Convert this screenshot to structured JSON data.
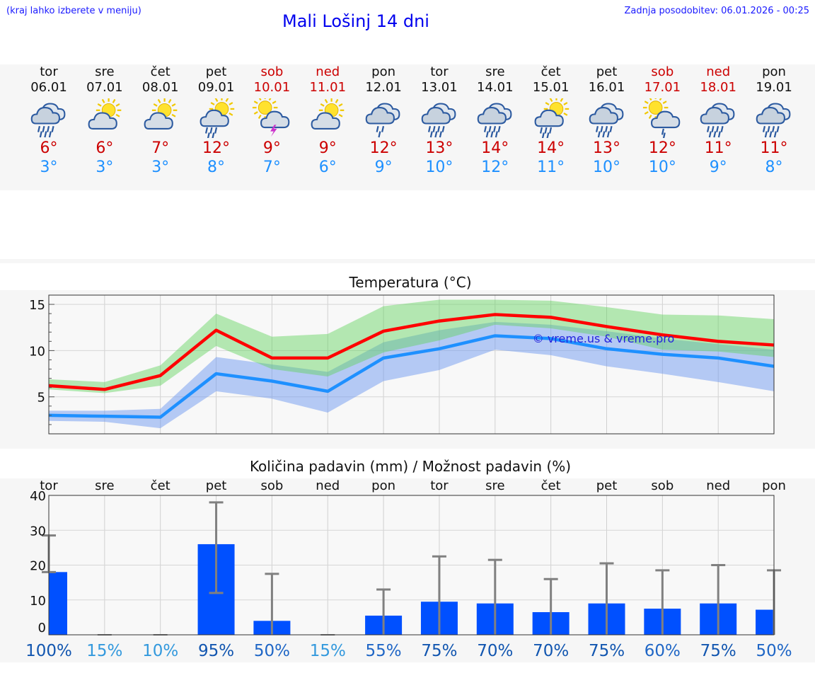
{
  "header": {
    "menu_hint": "(kraj lahko izberete v meniju)",
    "title": "Mali Lošinj 14 dni",
    "updated": "Zadnja posodobitev: 06.01.2026 - 00:25"
  },
  "colors": {
    "max": "#ff0000",
    "min": "#1e90ff",
    "bar": "#0050ff",
    "weekend": "#cc0000"
  },
  "days": [
    {
      "name": "tor",
      "date": "06.01",
      "max": "6°",
      "min": "3°",
      "icon": "rain-cloud-icon",
      "weekend": false
    },
    {
      "name": "sre",
      "date": "07.01",
      "max": "6°",
      "min": "3°",
      "icon": "partly-sunny-icon",
      "weekend": false
    },
    {
      "name": "čet",
      "date": "08.01",
      "max": "7°",
      "min": "3°",
      "icon": "partly-sunny-icon",
      "weekend": false
    },
    {
      "name": "pet",
      "date": "09.01",
      "max": "12°",
      "min": "8°",
      "icon": "sun-rain-icon",
      "weekend": false
    },
    {
      "name": "sob",
      "date": "10.01",
      "max": "9°",
      "min": "7°",
      "icon": "sun-thunder-icon",
      "weekend": true
    },
    {
      "name": "ned",
      "date": "11.01",
      "max": "9°",
      "min": "6°",
      "icon": "partly-sunny-icon",
      "weekend": true
    },
    {
      "name": "pon",
      "date": "12.01",
      "max": "12°",
      "min": "9°",
      "icon": "light-rain-cloud-icon",
      "weekend": false
    },
    {
      "name": "tor",
      "date": "13.01",
      "max": "13°",
      "min": "10°",
      "icon": "rain-cloud-icon",
      "weekend": false
    },
    {
      "name": "sre",
      "date": "14.01",
      "max": "14°",
      "min": "12°",
      "icon": "rain-cloud-icon",
      "weekend": false
    },
    {
      "name": "čet",
      "date": "15.01",
      "max": "14°",
      "min": "11°",
      "icon": "sun-rain-icon",
      "weekend": false
    },
    {
      "name": "pet",
      "date": "16.01",
      "max": "13°",
      "min": "10°",
      "icon": "rain-cloud-icon",
      "weekend": false
    },
    {
      "name": "sob",
      "date": "17.01",
      "max": "12°",
      "min": "10°",
      "icon": "sun-light-rain-icon",
      "weekend": true
    },
    {
      "name": "ned",
      "date": "18.01",
      "max": "11°",
      "min": "9°",
      "icon": "rain-cloud-icon",
      "weekend": true
    },
    {
      "name": "pon",
      "date": "19.01",
      "max": "11°",
      "min": "8°",
      "icon": "rain-cloud-icon",
      "weekend": false
    }
  ],
  "chart_data": [
    {
      "type": "line",
      "title": "Temperatura (°C)",
      "watermark": "© vreme.us & vreme.pro",
      "x": [
        0,
        1,
        2,
        3,
        4,
        5,
        6,
        7,
        8,
        9,
        10,
        11,
        12,
        13
      ],
      "ylim": [
        1,
        16
      ],
      "yticks": [
        5,
        10,
        15
      ],
      "series": [
        {
          "name": "max",
          "values": [
            6.2,
            5.8,
            7.3,
            12.2,
            9.2,
            9.2,
            12.1,
            13.2,
            13.9,
            13.6,
            12.6,
            11.7,
            11.0,
            10.6
          ]
        },
        {
          "name": "min",
          "values": [
            3.0,
            2.9,
            2.8,
            7.5,
            6.7,
            5.6,
            9.2,
            10.2,
            11.6,
            11.3,
            10.2,
            9.6,
            9.2,
            8.3
          ]
        }
      ],
      "bands": [
        {
          "name": "max-range",
          "lower": [
            5.8,
            5.4,
            6.2,
            10.5,
            8.0,
            7.2,
            9.8,
            11.1,
            12.8,
            12.4,
            11.5,
            10.1,
            9.9,
            9.3
          ],
          "upper": [
            6.9,
            6.6,
            8.4,
            14.0,
            11.5,
            11.8,
            14.8,
            15.5,
            15.5,
            15.4,
            14.7,
            13.9,
            13.8,
            13.4
          ]
        },
        {
          "name": "min-range",
          "lower": [
            2.4,
            2.3,
            1.6,
            5.6,
            4.8,
            3.3,
            6.7,
            7.9,
            10.1,
            9.5,
            8.3,
            7.5,
            6.6,
            5.6
          ],
          "upper": [
            3.5,
            3.5,
            3.7,
            9.3,
            8.5,
            7.7,
            10.9,
            12.2,
            13.1,
            12.8,
            12.1,
            11.3,
            10.7,
            10.1
          ]
        }
      ]
    },
    {
      "type": "bar",
      "title": "Količina padavin (mm) / Možnost padavin (%)",
      "categories": [
        "tor",
        "sre",
        "čet",
        "pet",
        "sob",
        "ned",
        "pon",
        "tor",
        "sre",
        "čet",
        "pet",
        "sob",
        "ned",
        "pon"
      ],
      "values": [
        18,
        0,
        0,
        26,
        4,
        0,
        5.5,
        9.5,
        9,
        6.5,
        9,
        7.5,
        9,
        7.2
      ],
      "error_low": [
        18,
        0,
        0,
        12,
        0,
        0,
        0,
        0,
        0,
        0,
        0,
        0,
        0,
        0
      ],
      "error_high": [
        28.5,
        0,
        0,
        38,
        17.5,
        0,
        13,
        22.5,
        21.5,
        16,
        20.5,
        18.5,
        20,
        18.5
      ],
      "ylim": [
        0,
        40
      ],
      "yticks": [
        0,
        10,
        20,
        30,
        40
      ],
      "probabilities": [
        "100%",
        "15%",
        "10%",
        "95%",
        "50%",
        "15%",
        "55%",
        "75%",
        "70%",
        "70%",
        "75%",
        "60%",
        "75%",
        "50%"
      ]
    }
  ]
}
